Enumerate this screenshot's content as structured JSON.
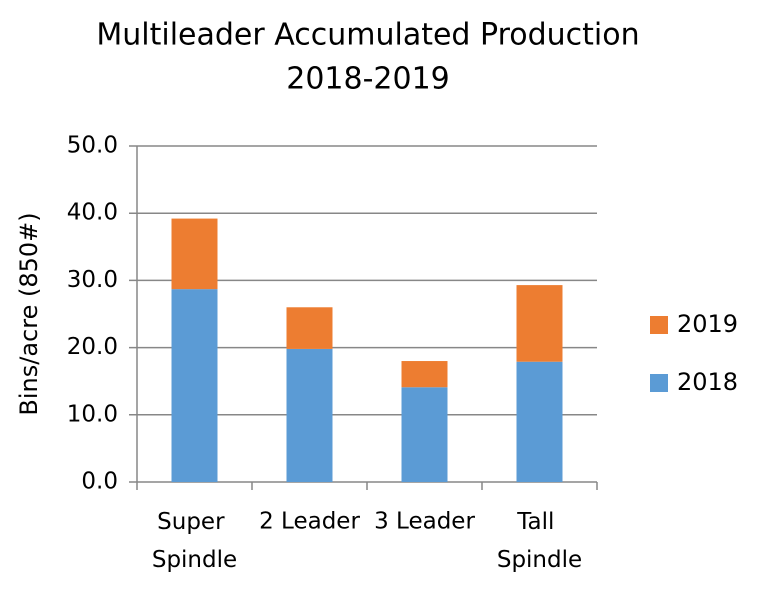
{
  "chart_data": {
    "type": "stacked_bar",
    "title": [
      "Multileader Accumulated Production",
      "2018-2019"
    ],
    "y_label": "Bins/acre (850#)",
    "categories": [
      "Super Spindle",
      "2 Leader",
      "3 Leader",
      "Tall Spindle"
    ],
    "series": [
      {
        "name": "2018",
        "color": "#5b9bd5",
        "values": [
          28.7,
          19.8,
          14.1,
          17.9
        ]
      },
      {
        "name": "2019",
        "color": "#ed7d31",
        "values": [
          10.5,
          6.2,
          3.9,
          11.4
        ]
      }
    ],
    "ylim": [
      0,
      50
    ],
    "yticks": [
      {
        "value": 0,
        "label": "0.0"
      },
      {
        "value": 10,
        "label": "10.0"
      },
      {
        "value": 20,
        "label": "20.0"
      },
      {
        "value": 30,
        "label": "30.0"
      },
      {
        "value": 40,
        "label": "40.0"
      },
      {
        "value": 50,
        "label": "50.0"
      }
    ],
    "grid": true,
    "legend": "right"
  }
}
